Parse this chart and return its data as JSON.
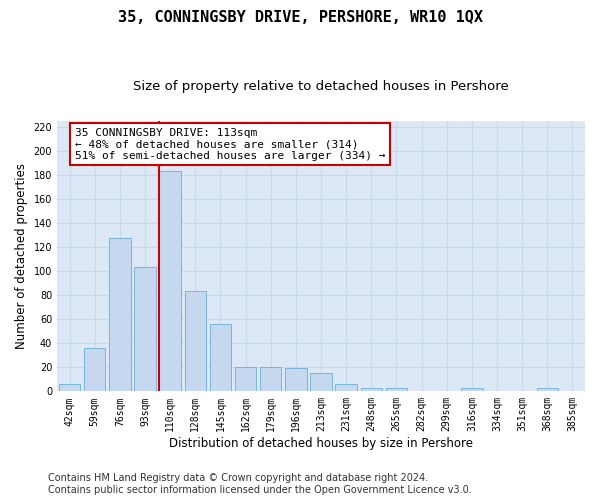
{
  "title": "35, CONNINGSBY DRIVE, PERSHORE, WR10 1QX",
  "subtitle": "Size of property relative to detached houses in Pershore",
  "xlabel": "Distribution of detached houses by size in Pershore",
  "ylabel": "Number of detached properties",
  "bar_labels": [
    "42sqm",
    "59sqm",
    "76sqm",
    "93sqm",
    "110sqm",
    "128sqm",
    "145sqm",
    "162sqm",
    "179sqm",
    "196sqm",
    "213sqm",
    "231sqm",
    "248sqm",
    "265sqm",
    "282sqm",
    "299sqm",
    "316sqm",
    "334sqm",
    "351sqm",
    "368sqm",
    "385sqm"
  ],
  "bar_values": [
    6,
    36,
    127,
    103,
    183,
    83,
    56,
    20,
    20,
    19,
    15,
    6,
    3,
    3,
    0,
    0,
    3,
    0,
    0,
    3,
    0
  ],
  "bar_color": "#c5d8ef",
  "bar_edge_color": "#6baed6",
  "vline_index": 4,
  "vline_color": "#cc0000",
  "ylim": [
    0,
    225
  ],
  "yticks": [
    0,
    20,
    40,
    60,
    80,
    100,
    120,
    140,
    160,
    180,
    200,
    220
  ],
  "annotation_text": "35 CONNINGSBY DRIVE: 113sqm\n← 48% of detached houses are smaller (314)\n51% of semi-detached houses are larger (334) →",
  "annotation_box_edgecolor": "#cc0000",
  "bg_color": "#dce8f5",
  "grid_color": "#c8d8e8",
  "title_fontsize": 11,
  "subtitle_fontsize": 9.5,
  "ylabel_fontsize": 8.5,
  "xlabel_fontsize": 8.5,
  "tick_fontsize": 7,
  "annotation_fontsize": 8,
  "footer_fontsize": 7,
  "footer_line1": "Contains HM Land Registry data © Crown copyright and database right 2024.",
  "footer_line2": "Contains public sector information licensed under the Open Government Licence v3.0."
}
